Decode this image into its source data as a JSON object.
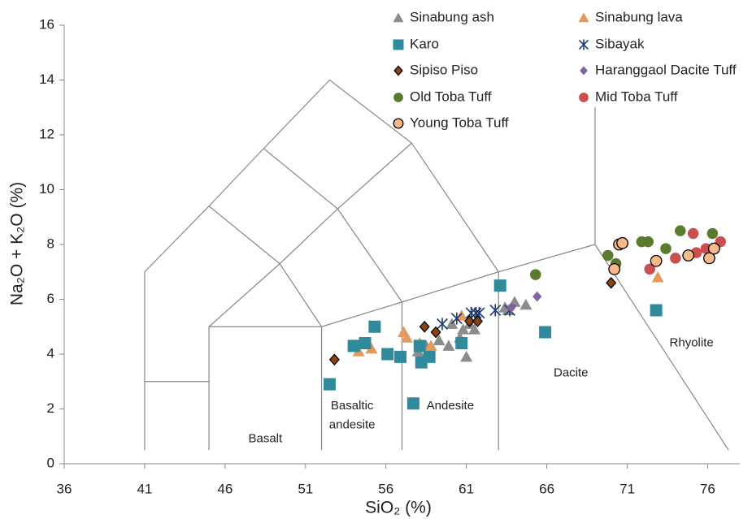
{
  "chart_data": {
    "type": "scatter",
    "x_label": "SiO₂ (%)",
    "y_label": "Na₂O + K₂O (%)",
    "xlim": [
      36,
      78
    ],
    "xticks": [
      36,
      41,
      46,
      51,
      56,
      61,
      66,
      71,
      76
    ],
    "ylim": [
      0,
      16
    ],
    "yticks": [
      0,
      2,
      4,
      6,
      8,
      10,
      12,
      14,
      16
    ],
    "annotations": [
      "Basalt",
      "Basaltic",
      "andesite",
      "Andesite",
      "Dacite",
      "Rhyolite"
    ],
    "boundaries": [
      [
        [
          41,
          0.5
        ],
        [
          41,
          3
        ],
        [
          45,
          3
        ]
      ],
      [
        [
          41,
          3
        ],
        [
          41,
          7
        ],
        [
          45,
          9.4
        ],
        [
          48.4,
          11.5
        ],
        [
          52.5,
          14
        ],
        [
          57.6,
          11.7
        ],
        [
          63,
          7
        ]
      ],
      [
        [
          45,
          0.5
        ],
        [
          45,
          5
        ],
        [
          52,
          5
        ],
        [
          57,
          5.9
        ],
        [
          63,
          7
        ],
        [
          69,
          8
        ],
        [
          77.3,
          0.5
        ]
      ],
      [
        [
          52,
          0.5
        ],
        [
          52,
          5
        ]
      ],
      [
        [
          57,
          0.5
        ],
        [
          57,
          5.9
        ]
      ],
      [
        [
          63,
          0.5
        ],
        [
          63,
          7
        ]
      ],
      [
        [
          69,
          8
        ],
        [
          69,
          13
        ]
      ],
      [
        [
          45,
          5
        ],
        [
          49.4,
          7.3
        ],
        [
          53,
          9.3
        ],
        [
          57.6,
          11.7
        ]
      ],
      [
        [
          52,
          5
        ],
        [
          49.4,
          7.3
        ],
        [
          45,
          9.4
        ]
      ],
      [
        [
          57,
          5.9
        ],
        [
          53,
          9.3
        ],
        [
          48.4,
          11.5
        ]
      ]
    ],
    "series": [
      {
        "name": "Sinabung ash",
        "marker": "triangle",
        "color": "#8c8c8c",
        "x": [
          61.2,
          61.5,
          60.8,
          60.1,
          59.9,
          60.6,
          59.3,
          58.5,
          58.0,
          61.0,
          63.4,
          64.0,
          64.7,
          63.6
        ],
        "values": [
          5.1,
          4.9,
          4.9,
          5.1,
          4.3,
          4.6,
          4.5,
          4.3,
          4.1,
          3.9,
          5.7,
          5.9,
          5.8,
          5.6
        ]
      },
      {
        "name": "Sinabung lava",
        "marker": "triangle",
        "color": "#e39a5e",
        "x": [
          54.3,
          55.1,
          57.1,
          57.3,
          58.1,
          58.8,
          60.7,
          72.9
        ],
        "values": [
          4.1,
          4.2,
          4.8,
          4.6,
          4.4,
          4.3,
          5.4,
          6.8
        ]
      },
      {
        "name": "Karo",
        "marker": "square",
        "color": "#2f8a9c",
        "x": [
          52.5,
          54.0,
          54.7,
          55.3,
          56.1,
          56.9,
          57.7,
          58.1,
          58.2,
          58.7,
          60.7,
          63.1,
          65.9,
          72.8
        ],
        "values": [
          2.9,
          4.3,
          4.4,
          5.0,
          4.0,
          3.9,
          2.2,
          4.3,
          3.7,
          3.9,
          4.4,
          6.5,
          4.8,
          5.6
        ]
      },
      {
        "name": "Sibayak",
        "marker": "star",
        "color": "#1f3a73",
        "x": [
          59.5,
          60.4,
          61.3,
          61.6,
          61.8,
          62.8,
          63.7
        ],
        "values": [
          5.1,
          5.3,
          5.5,
          5.5,
          5.5,
          5.6,
          5.6
        ]
      },
      {
        "name": "Sipiso Piso",
        "marker": "diamond",
        "color": "#8b4513",
        "edgecolor": "#000000",
        "x": [
          52.8,
          58.4,
          59.1,
          61.2,
          61.7,
          70.0
        ],
        "values": [
          3.8,
          5.0,
          4.8,
          5.2,
          5.2,
          6.6
        ]
      },
      {
        "name": "Haranggaol Dacite Tuff",
        "marker": "diamond",
        "color": "#8064a2",
        "x": [
          63.8,
          65.4
        ],
        "values": [
          5.7,
          6.1
        ]
      },
      {
        "name": "Old Toba Tuff",
        "marker": "circle",
        "color": "#5a7a2e",
        "x": [
          65.3,
          69.8,
          70.3,
          71.9,
          72.3,
          73.4,
          74.3,
          76.3
        ],
        "values": [
          6.9,
          7.6,
          7.3,
          8.1,
          8.1,
          7.85,
          8.5,
          8.4
        ]
      },
      {
        "name": "Mid Toba Tuff",
        "marker": "circle",
        "color": "#c9504f",
        "x": [
          72.4,
          74.0,
          75.1,
          75.3,
          75.9,
          76.8
        ],
        "values": [
          7.1,
          7.5,
          8.4,
          7.7,
          7.85,
          8.1
        ]
      },
      {
        "name": "Young Toba Tuff",
        "marker": "circle",
        "color": "#f7b98a",
        "edgecolor": "#000000",
        "x": [
          70.2,
          70.5,
          70.7,
          72.8,
          74.8,
          76.1,
          76.4
        ],
        "values": [
          7.1,
          8.0,
          8.05,
          7.4,
          7.6,
          7.5,
          7.85
        ]
      }
    ]
  }
}
